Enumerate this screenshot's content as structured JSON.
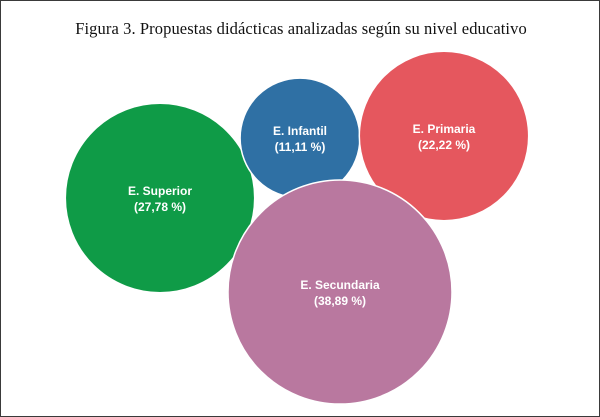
{
  "chart_data": {
    "type": "bubble",
    "title": "Figura 3. Propuestas didácticas analizadas según su nivel educativo",
    "series": [
      {
        "name": "E. Superior",
        "value": 27.78,
        "percent_label": "(27,78 %)",
        "color": "#0f9b47"
      },
      {
        "name": "E. Infantil",
        "value": 11.11,
        "percent_label": "(11,11 %)",
        "color": "#2f70a4"
      },
      {
        "name": "E. Primaria",
        "value": 22.22,
        "percent_label": "(22,22 %)",
        "color": "#e5575e"
      },
      {
        "name": "E. Secundaria",
        "value": 38.89,
        "percent_label": "(38,89 %)",
        "color": "#b9789f"
      }
    ]
  }
}
